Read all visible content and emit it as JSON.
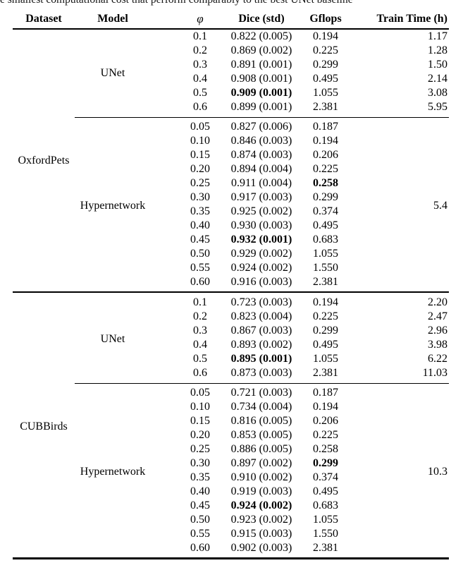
{
  "caption_fragment": "e smallest computational cost that perform comparably to the best UNet baseline",
  "table": {
    "columns": [
      "Dataset",
      "Model",
      "φ",
      "Dice (std)",
      "Gflops",
      "Train Time (h)"
    ],
    "sections": [
      {
        "dataset": "OxfordPets",
        "blocks": [
          {
            "model": "UNet",
            "train_time": null,
            "rows": [
              {
                "phi": "0.1",
                "dice": "0.822 (0.005)",
                "gflops": "0.194",
                "train": "1.17"
              },
              {
                "phi": "0.2",
                "dice": "0.869 (0.002)",
                "gflops": "0.225",
                "train": "1.28"
              },
              {
                "phi": "0.3",
                "dice": "0.891 (0.001)",
                "gflops": "0.299",
                "train": "1.50"
              },
              {
                "phi": "0.4",
                "dice": "0.908 (0.001)",
                "gflops": "0.495",
                "train": "2.14"
              },
              {
                "phi": "0.5",
                "dice": "0.909 (0.001)",
                "dice_bold": true,
                "gflops": "1.055",
                "train": "3.08"
              },
              {
                "phi": "0.6",
                "dice": "0.899 (0.001)",
                "gflops": "2.381",
                "train": "5.95"
              }
            ]
          },
          {
            "model": "Hypernetwork",
            "train_time": "5.4",
            "rows": [
              {
                "phi": "0.05",
                "dice": "0.827 (0.006)",
                "gflops": "0.187"
              },
              {
                "phi": "0.10",
                "dice": "0.846 (0.003)",
                "gflops": "0.194"
              },
              {
                "phi": "0.15",
                "dice": "0.874 (0.003)",
                "gflops": "0.206"
              },
              {
                "phi": "0.20",
                "dice": "0.894 (0.004)",
                "gflops": "0.225"
              },
              {
                "phi": "0.25",
                "dice": "0.911 (0.004)",
                "gflops": "0.258",
                "gflops_bold": true
              },
              {
                "phi": "0.30",
                "dice": "0.917 (0.003)",
                "gflops": "0.299"
              },
              {
                "phi": "0.35",
                "dice": "0.925 (0.002)",
                "gflops": "0.374"
              },
              {
                "phi": "0.40",
                "dice": "0.930 (0.003)",
                "gflops": "0.495"
              },
              {
                "phi": "0.45",
                "dice": "0.932 (0.001)",
                "dice_bold": true,
                "gflops": "0.683"
              },
              {
                "phi": "0.50",
                "dice": "0.929 (0.002)",
                "gflops": "1.055"
              },
              {
                "phi": "0.55",
                "dice": "0.924 (0.002)",
                "gflops": "1.550"
              },
              {
                "phi": "0.60",
                "dice": "0.916 (0.003)",
                "gflops": "2.381"
              }
            ]
          }
        ]
      },
      {
        "dataset": "CUBBirds",
        "blocks": [
          {
            "model": "UNet",
            "train_time": null,
            "rows": [
              {
                "phi": "0.1",
                "dice": "0.723 (0.003)",
                "gflops": "0.194",
                "train": "2.20"
              },
              {
                "phi": "0.2",
                "dice": "0.823 (0.004)",
                "gflops": "0.225",
                "train": "2.47"
              },
              {
                "phi": "0.3",
                "dice": "0.867 (0.003)",
                "gflops": "0.299",
                "train": "2.96"
              },
              {
                "phi": "0.4",
                "dice": "0.893 (0.002)",
                "gflops": "0.495",
                "train": "3.98"
              },
              {
                "phi": "0.5",
                "dice": "0.895 (0.001)",
                "dice_bold": true,
                "gflops": "1.055",
                "train": "6.22"
              },
              {
                "phi": "0.6",
                "dice": "0.873 (0.003)",
                "gflops": "2.381",
                "train": "11.03"
              }
            ]
          },
          {
            "model": "Hypernetwork",
            "train_time": "10.3",
            "rows": [
              {
                "phi": "0.05",
                "dice": "0.721 (0.003)",
                "gflops": "0.187"
              },
              {
                "phi": "0.10",
                "dice": "0.734 (0.004)",
                "gflops": "0.194"
              },
              {
                "phi": "0.15",
                "dice": "0.816 (0.005)",
                "gflops": "0.206"
              },
              {
                "phi": "0.20",
                "dice": "0.853 (0.005)",
                "gflops": "0.225"
              },
              {
                "phi": "0.25",
                "dice": "0.886 (0.005)",
                "gflops": "0.258"
              },
              {
                "phi": "0.30",
                "dice": "0.897 (0.002)",
                "gflops": "0.299",
                "gflops_bold": true
              },
              {
                "phi": "0.35",
                "dice": "0.910 (0.002)",
                "gflops": "0.374"
              },
              {
                "phi": "0.40",
                "dice": "0.919 (0.003)",
                "gflops": "0.495"
              },
              {
                "phi": "0.45",
                "dice": "0.924 (0.002)",
                "dice_bold": true,
                "gflops": "0.683"
              },
              {
                "phi": "0.50",
                "dice": "0.923 (0.002)",
                "gflops": "1.055"
              },
              {
                "phi": "0.55",
                "dice": "0.915 (0.003)",
                "gflops": "1.550"
              },
              {
                "phi": "0.60",
                "dice": "0.902 (0.003)",
                "gflops": "2.381"
              }
            ]
          }
        ]
      }
    ]
  }
}
